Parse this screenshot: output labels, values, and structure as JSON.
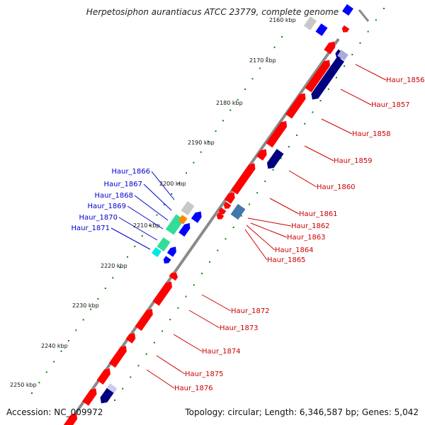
{
  "title": "Herpetosiphon aurantiacus ATCC 23779, complete genome",
  "accession": "Accession: NC_009972",
  "summary": "Topology: circular; Length: 6,346,587 bp; Genes: 5,042",
  "scale": {
    "clipped_label": "2160 kbp",
    "ticks": [
      "2170 kbp",
      "2180 kbp",
      "2190 kbp",
      "2200 kbp",
      "2210 kbp",
      "2220 kbp",
      "2230 kbp",
      "2240 kbp",
      "2250 kbp"
    ]
  },
  "labels_left": [
    "Haur_1866",
    "Haur_1867",
    "Haur_1868",
    "Haur_1869",
    "Haur_1870",
    "Haur_1871"
  ],
  "labels_right": [
    "Haur_1856",
    "Haur_1857",
    "Haur_1858",
    "Haur_1859",
    "Haur_1860",
    "Haur_1861",
    "Haur_1862",
    "Haur_1863",
    "Haur_1864",
    "Haur_1865",
    "Haur_1872",
    "Haur_1873",
    "Haur_1874",
    "Haur_1875",
    "Haur_1876"
  ],
  "colors": {
    "backbone": "#8a8a8a",
    "forward_gene": "#ff0000",
    "reverse_gene": "#000080",
    "blue_gene": "#0000ff",
    "cyan_gene": "#00e6e6",
    "teal_gene": "#33dd99",
    "grey_gene": "#c8c8c8",
    "tick_dots": "#008800",
    "left_label": "#0000cc",
    "right_label": "#cc0000"
  }
}
